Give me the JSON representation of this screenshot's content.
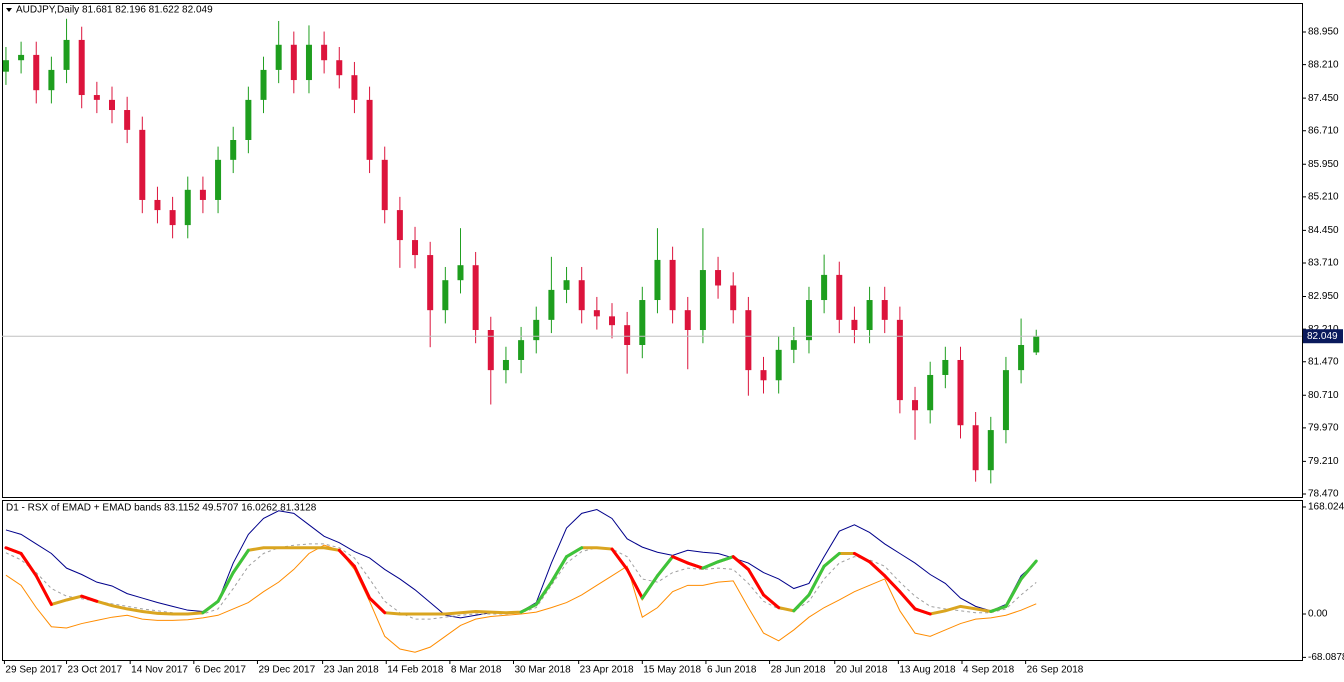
{
  "chart_data": [
    {
      "type": "candlestick",
      "title": "AUDJPY,Daily  81.681 82.196 81.622 82.049",
      "up_color": "#1e9e1e",
      "down_color": "#dc143c",
      "price_line_color": "#c0c0c0",
      "price_label_color": "#0a1a5c",
      "open": [
        88.05,
        88.31,
        88.43,
        87.63,
        88.09,
        88.77,
        87.52,
        87.41,
        87.18,
        86.73,
        85.14,
        84.91,
        84.57,
        85.37,
        85.14,
        86.05,
        86.5,
        87.41,
        88.09,
        88.66,
        87.86,
        88.66,
        88.31,
        87.97,
        87.41,
        86.05,
        84.91,
        84.23,
        83.89,
        82.64,
        83.32,
        83.66,
        82.19,
        81.28,
        81.51,
        81.96,
        82.42,
        83.1,
        83.32,
        82.64,
        82.5,
        82.3,
        81.85,
        82.87,
        83.78,
        82.64,
        82.19,
        83.55,
        83.2,
        82.64,
        81.28,
        81.05,
        81.74,
        81.96,
        82.87,
        83.44,
        82.42,
        82.19,
        82.87,
        82.42,
        80.6,
        80.37,
        81.17,
        81.51,
        80.03,
        79.01,
        79.92,
        81.28,
        81.681
      ],
      "high": [
        88.61,
        88.73,
        88.73,
        88.39,
        89.25,
        89.07,
        87.82,
        87.71,
        87.48,
        87.03,
        85.44,
        85.21,
        85.67,
        85.67,
        86.35,
        86.8,
        87.71,
        88.39,
        89.2,
        88.96,
        89.1,
        88.96,
        88.61,
        88.27,
        87.71,
        86.35,
        85.21,
        84.53,
        84.19,
        83.62,
        84.5,
        83.96,
        82.49,
        81.81,
        82.26,
        82.72,
        83.85,
        83.62,
        83.62,
        82.94,
        82.8,
        82.6,
        83.17,
        84.5,
        84.08,
        82.94,
        84.5,
        83.85,
        83.5,
        82.94,
        81.58,
        82.04,
        82.26,
        83.17,
        83.9,
        83.74,
        82.72,
        83.17,
        83.17,
        82.72,
        80.9,
        81.47,
        81.81,
        81.81,
        80.33,
        80.22,
        81.58,
        82.45,
        82.196
      ],
      "low": [
        87.75,
        88.01,
        87.33,
        87.33,
        87.79,
        87.22,
        87.11,
        86.88,
        86.43,
        84.84,
        84.61,
        84.27,
        84.27,
        84.84,
        84.84,
        85.75,
        86.2,
        87.11,
        87.79,
        87.56,
        87.56,
        88.01,
        87.67,
        87.11,
        85.75,
        84.61,
        83.6,
        83.59,
        81.8,
        82.34,
        83.02,
        81.89,
        80.5,
        80.98,
        81.21,
        81.66,
        82.12,
        82.8,
        82.34,
        82.2,
        82.0,
        81.2,
        81.55,
        82.57,
        82.34,
        81.3,
        81.89,
        82.9,
        82.34,
        80.7,
        80.75,
        80.75,
        81.44,
        81.66,
        82.57,
        82.12,
        81.89,
        81.89,
        82.12,
        80.3,
        79.7,
        80.07,
        80.87,
        79.73,
        78.75,
        78.71,
        79.62,
        80.98,
        81.622
      ],
      "close": [
        88.31,
        88.43,
        87.63,
        88.09,
        88.77,
        87.52,
        87.41,
        87.18,
        86.73,
        85.14,
        84.91,
        84.57,
        85.37,
        85.14,
        86.05,
        86.5,
        87.41,
        88.09,
        88.66,
        87.86,
        88.66,
        88.31,
        87.97,
        87.41,
        86.05,
        84.91,
        84.23,
        83.89,
        82.64,
        83.32,
        83.66,
        82.19,
        81.28,
        81.51,
        81.96,
        82.42,
        83.1,
        83.32,
        82.64,
        82.5,
        82.3,
        81.85,
        82.87,
        83.78,
        82.64,
        82.19,
        83.55,
        83.2,
        82.64,
        81.28,
        81.05,
        81.74,
        81.96,
        82.87,
        83.44,
        82.42,
        82.19,
        82.87,
        82.42,
        80.6,
        80.37,
        81.17,
        81.51,
        80.03,
        79.01,
        79.92,
        81.28,
        81.85,
        82.049
      ],
      "xlim": [
        -0.26,
        85.54
      ],
      "ylim": [
        78.402,
        89.585
      ],
      "yticks": [
        {
          "value": 88.95,
          "label": "88.950"
        },
        {
          "value": 88.21,
          "label": "88.210"
        },
        {
          "value": 87.45,
          "label": "87.450"
        },
        {
          "value": 86.71,
          "label": "86.710"
        },
        {
          "value": 85.95,
          "label": "85.950"
        },
        {
          "value": 85.21,
          "label": "85.210"
        },
        {
          "value": 84.45,
          "label": "84.450"
        },
        {
          "value": 83.71,
          "label": "83.710"
        },
        {
          "value": 82.95,
          "label": "82.950"
        },
        {
          "value": 82.21,
          "label": "82.210"
        },
        {
          "value": 81.47,
          "label": "81.470"
        },
        {
          "value": 80.71,
          "label": "80.710"
        },
        {
          "value": 79.97,
          "label": "79.970"
        },
        {
          "value": 79.21,
          "label": "79.210"
        },
        {
          "value": 78.47,
          "label": "78.470"
        }
      ],
      "xticks": [
        {
          "value": -0.1,
          "label": "29 Sep 2017"
        },
        {
          "value": 4.0,
          "label": "23 Oct 2017"
        },
        {
          "value": 8.2,
          "label": "14 Nov 2017"
        },
        {
          "value": 12.4,
          "label": "6 Dec 2017"
        },
        {
          "value": 16.6,
          "label": "29 Dec 2017"
        },
        {
          "value": 20.9,
          "label": "23 Jan 2018"
        },
        {
          "value": 25.1,
          "label": "14 Feb 2018"
        },
        {
          "value": 29.3,
          "label": "8 Mar 2018"
        },
        {
          "value": 33.5,
          "label": "30 Mar 2018"
        },
        {
          "value": 37.8,
          "label": "23 Apr 2018"
        },
        {
          "value": 42.0,
          "label": "15 May 2018"
        },
        {
          "value": 46.2,
          "label": "6 Jun 2018"
        },
        {
          "value": 50.4,
          "label": "28 Jun 2018"
        },
        {
          "value": 54.7,
          "label": "20 Jul 2018"
        },
        {
          "value": 58.9,
          "label": "13 Aug 2018"
        },
        {
          "value": 63.1,
          "label": "4 Sep 2018"
        },
        {
          "value": 67.3,
          "label": "26 Sep 2018"
        }
      ]
    },
    {
      "type": "line",
      "title": "D1 - RSX of EMAD + EMAD bands 83.1152 49.5707 16.0262 81.3128",
      "up_color": "#3cc43c",
      "down_color": "#ff0000",
      "xlim": [
        -0.26,
        85.54
      ],
      "ylim": [
        -72.2,
        177.4
      ],
      "yticks": [
        168.0241,
        {
          "value": 0,
          "label": "0.00"
        },
        -68.0878
      ],
      "series": [
        {
          "color": "#daa520",
          "width": 3,
          "trend": true,
          "values": [
            104,
            95,
            60,
            15,
            22,
            28,
            20,
            13,
            8,
            4,
            1,
            0,
            0,
            2,
            20,
            65,
            100,
            104,
            104,
            104,
            104,
            104,
            100,
            75,
            25,
            2,
            0,
            0,
            0,
            0,
            2,
            4,
            3,
            2,
            3,
            15,
            50,
            90,
            104,
            104,
            102,
            70,
            25,
            60,
            90,
            80,
            72,
            82,
            90,
            70,
            30,
            10,
            5,
            30,
            75,
            95,
            95,
            82,
            60,
            35,
            8,
            0,
            5,
            12,
            8,
            4,
            12,
            55,
            83.1152
          ]
        },
        {
          "color": "#a0a0a0",
          "width": 1,
          "dash": true,
          "values": [
            96,
            85,
            65,
            40,
            28,
            24,
            20,
            16,
            12,
            8,
            5,
            2,
            0,
            0,
            8,
            40,
            75,
            95,
            104,
            108,
            110,
            110,
            104,
            88,
            55,
            20,
            2,
            -8,
            -8,
            -5,
            -2,
            0,
            0,
            0,
            2,
            10,
            45,
            80,
            98,
            104,
            102,
            90,
            55,
            50,
            65,
            72,
            70,
            72,
            70,
            48,
            20,
            8,
            5,
            20,
            55,
            80,
            90,
            85,
            75,
            50,
            28,
            12,
            8,
            5,
            2,
            2,
            8,
            30,
            49.5707
          ]
        },
        {
          "color": "#ff8c00",
          "width": 1,
          "values": [
            61,
            45,
            10,
            -20,
            -22,
            -15,
            -10,
            -5,
            -2,
            -8,
            -10,
            -10,
            -9,
            -6,
            -2,
            8,
            18,
            35,
            50,
            70,
            95,
            108,
            100,
            70,
            20,
            -35,
            -55,
            -60,
            -52,
            -35,
            -18,
            -8,
            -4,
            -2,
            0,
            3,
            10,
            18,
            30,
            45,
            60,
            75,
            -5,
            10,
            35,
            45,
            45,
            50,
            52,
            10,
            -30,
            -42,
            -25,
            -5,
            10,
            22,
            35,
            45,
            55,
            5,
            -30,
            -35,
            -25,
            -15,
            -8,
            -6,
            -2,
            6,
            16.0262
          ]
        },
        {
          "color": "#00008b",
          "width": 1,
          "values": [
            132,
            125,
            110,
            95,
            72,
            62,
            50,
            44,
            32,
            25,
            18,
            12,
            6,
            4,
            20,
            80,
            125,
            150,
            162,
            158,
            140,
            122,
            112,
            98,
            88,
            70,
            55,
            38,
            18,
            -2,
            -6,
            -2,
            2,
            2,
            4,
            18,
            80,
            135,
            158,
            164,
            150,
            118,
            105,
            97,
            92,
            100,
            97,
            95,
            88,
            80,
            65,
            55,
            40,
            48,
            90,
            130,
            140,
            128,
            110,
            95,
            80,
            62,
            48,
            25,
            12,
            5,
            15,
            60,
            81.3128
          ]
        }
      ]
    }
  ]
}
